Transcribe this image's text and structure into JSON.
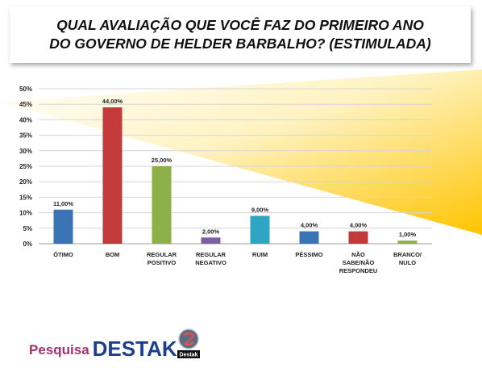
{
  "header": {
    "title": "QUAL AVALIAÇÃO QUE VOCÊ FAZ DO PRIMEIRO ANO DO GOVERNO DE HELDER BARBALHO? (ESTIMULADA)"
  },
  "chart_data": {
    "type": "bar",
    "title": "QUAL AVALIAÇÃO QUE VOCÊ FAZ DO PRIMEIRO ANO DO GOVERNO DE HELDER BARBALHO? (ESTIMULADA)",
    "categories": [
      [
        "ÓTIMO"
      ],
      [
        "BOM"
      ],
      [
        "REGULAR",
        "POSITIVO"
      ],
      [
        "REGULAR",
        "NEGATIVO"
      ],
      [
        "RUIM"
      ],
      [
        "PÉSSIMO"
      ],
      [
        "NÃO",
        "SABE/NÃO",
        "RESPONDEU"
      ],
      [
        "BRANCO/",
        "NULO"
      ]
    ],
    "values": [
      11,
      44,
      25,
      2,
      9,
      4,
      4,
      1
    ],
    "value_labels": [
      "11,00%",
      "44,00%",
      "25,00%",
      "2,00%",
      "9,00%",
      "4,00%",
      "4,00%",
      "1,00%"
    ],
    "colors": [
      "#3b74b5",
      "#c33a3a",
      "#8db048",
      "#7b5ea3",
      "#2fa5c4",
      "#3b74b5",
      "#c33a3a",
      "#8db048"
    ],
    "yticks": [
      "0%",
      "5%",
      "10%",
      "15%",
      "20%",
      "25%",
      "30%",
      "35%",
      "40%",
      "45%",
      "50%"
    ],
    "ylim": [
      0,
      50
    ],
    "grid": true,
    "xlabel": "",
    "ylabel": ""
  },
  "footer": {
    "pesquisa": "Pesquisa",
    "destak": "DESTAK",
    "logo_text": "Destak"
  },
  "colors": {
    "background_accent": "#ffcc00",
    "brand_pesquisa": "#a0336e",
    "brand_destak": "#1e3f8c"
  }
}
